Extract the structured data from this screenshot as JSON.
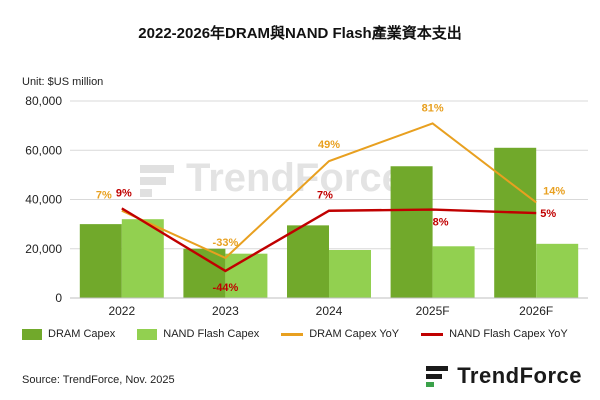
{
  "title": "2022-2026年DRAM與NAND Flash產業資本支出",
  "unit_label": "Unit: $US million",
  "source": "Source: TrendForce, Nov. 2025",
  "brand": "TrendForce",
  "colors": {
    "dram_capex": "#71a92b",
    "nand_capex": "#92d050",
    "dram_yoy": "#e8a020",
    "nand_yoy": "#c00000",
    "dram_yoy_label": "#e8a020",
    "nand_yoy_label": "#c00000",
    "grid": "#d9d9d9"
  },
  "chart_data": {
    "type": "bar",
    "categories": [
      "2022",
      "2023",
      "2024",
      "2025F",
      "2026F"
    ],
    "ylim": [
      0,
      80000
    ],
    "yticks": [
      "0",
      "20,000",
      "40,000",
      "60,000",
      "80,000"
    ],
    "ytick_values": [
      0,
      20000,
      40000,
      60000,
      80000
    ],
    "grid": true,
    "legend_position": "bottom",
    "series": [
      {
        "name": "DRAM Capex",
        "kind": "bar",
        "values": [
          30000,
          20000,
          29500,
          53500,
          61000
        ]
      },
      {
        "name": "NAND Flash Capex",
        "kind": "bar",
        "values": [
          32000,
          18000,
          19500,
          21000,
          22000
        ]
      },
      {
        "name": "DRAM Capex YoY",
        "kind": "line",
        "values": [
          7,
          -33,
          49,
          81,
          14
        ],
        "labels": [
          "7%",
          "-33%",
          "49%",
          "81%",
          "14%"
        ]
      },
      {
        "name": "NAND Flash Capex YoY",
        "kind": "line",
        "values": [
          9,
          -44,
          7,
          8,
          5
        ],
        "labels": [
          "9%",
          "-44%",
          "7%",
          "8%",
          "5%"
        ]
      }
    ]
  }
}
